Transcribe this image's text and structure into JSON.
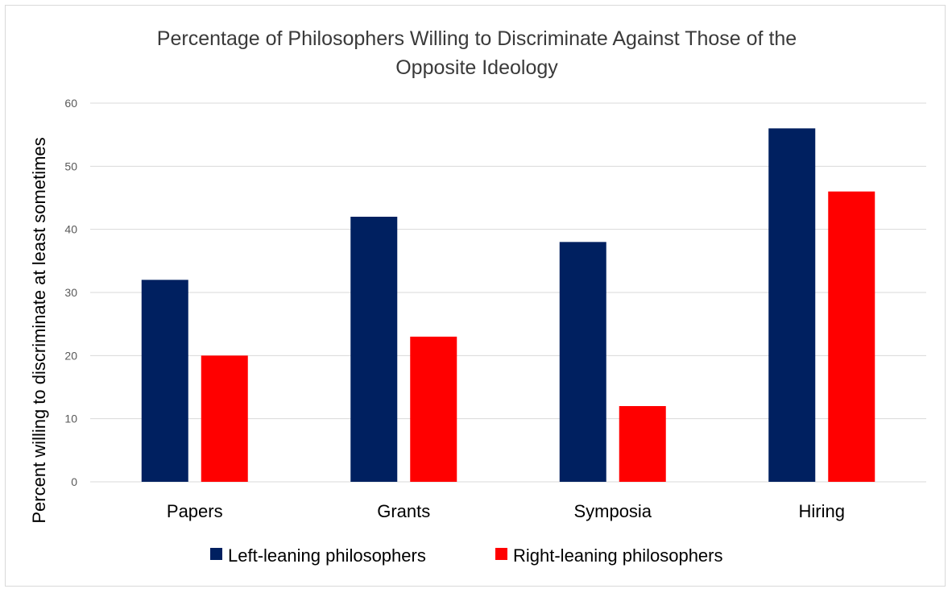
{
  "chart_data": {
    "type": "bar",
    "title_lines": [
      "Percentage of Philosophers Willing to Discriminate Against Those of the",
      "Opposite Ideology"
    ],
    "xlabel": "",
    "ylabel": "Percent willing to discriminate at least sometimes",
    "categories": [
      "Papers",
      "Grants",
      "Symposia",
      "Hiring"
    ],
    "series": [
      {
        "name": "Left-leaning philosophers",
        "color": "#002060",
        "values": [
          32,
          42,
          38,
          56
        ]
      },
      {
        "name": "Right-leaning philosophers",
        "color": "#ff0000",
        "values": [
          20,
          23,
          12,
          46
        ]
      }
    ],
    "ylim": [
      0,
      60
    ],
    "yticks": [
      "0",
      "10",
      "20",
      "30",
      "40",
      "50",
      "60"
    ],
    "grid": true,
    "legend_position": "bottom"
  }
}
